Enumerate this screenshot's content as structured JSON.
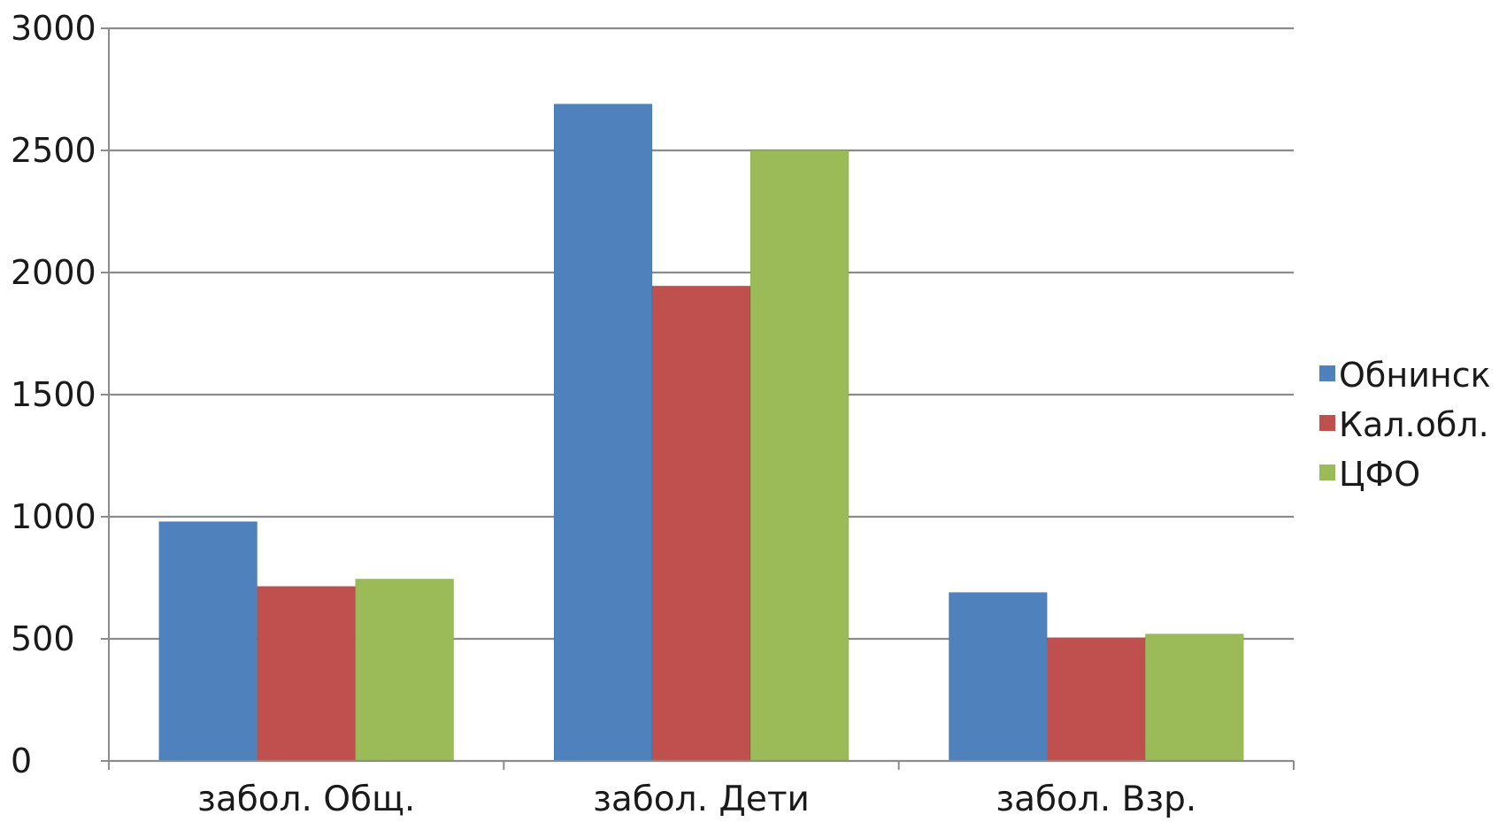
{
  "chart_data": {
    "type": "bar",
    "title": "",
    "xlabel": "",
    "ylabel": "",
    "categories": [
      "забол. Общ.",
      "забол. Дети",
      "забол. Взр."
    ],
    "series": [
      {
        "name": "Обнинск",
        "color": "#4f81bd",
        "values": [
          980,
          2690,
          690
        ]
      },
      {
        "name": "Кал.обл.",
        "color": "#c0504d",
        "values": [
          715,
          1945,
          505
        ]
      },
      {
        "name": "ЦФО",
        "color": "#9bbb59",
        "values": [
          745,
          2500,
          520
        ]
      }
    ],
    "ylim": [
      0,
      3000
    ],
    "yticks": [
      0,
      500,
      1000,
      1500,
      2000,
      2500,
      3000
    ],
    "grid": true,
    "legend_position": "right"
  }
}
